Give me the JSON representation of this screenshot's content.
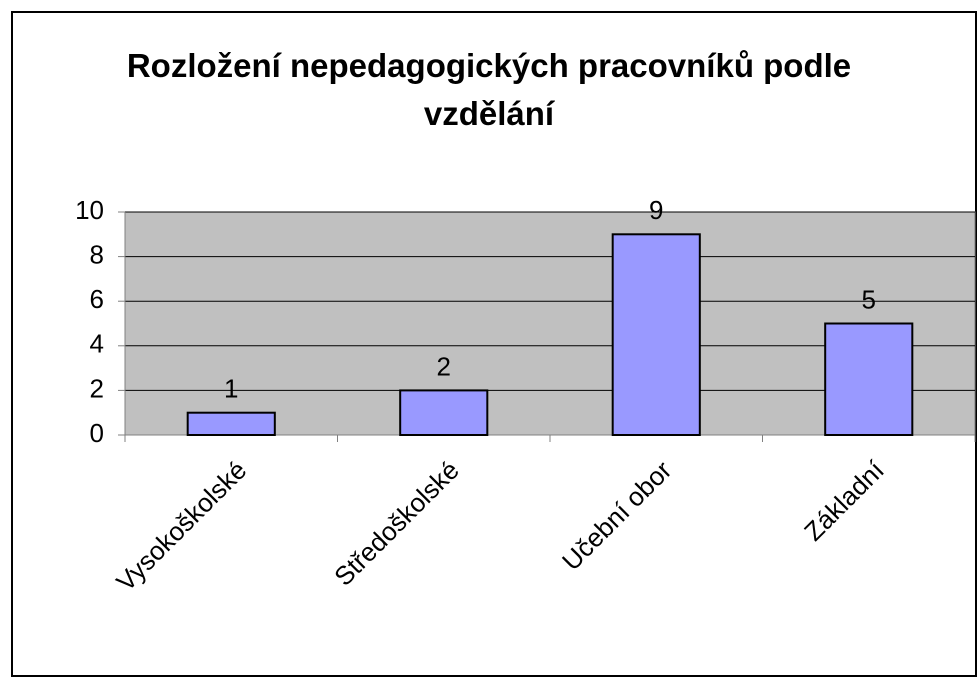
{
  "chart_data": {
    "type": "bar",
    "title": "Rozložení nepedagogických pracovníků podle vzdělání",
    "categories": [
      "Vysokoškolské",
      "Středoškolské",
      "Učební obor",
      "Základní"
    ],
    "values": [
      1,
      2,
      9,
      5
    ],
    "color": "#9999ff",
    "ylim": [
      0,
      10
    ],
    "yticks": [
      0,
      2,
      4,
      6,
      8,
      10
    ],
    "grid": true
  }
}
